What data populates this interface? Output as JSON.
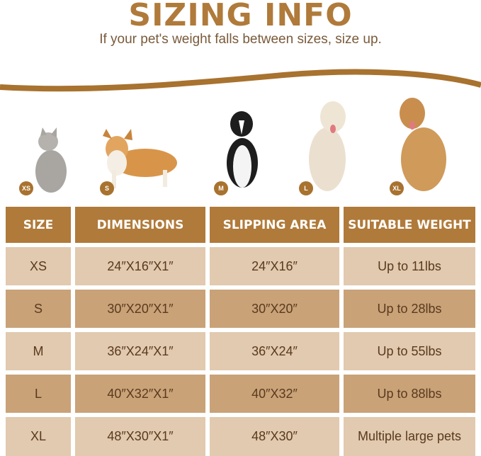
{
  "title": "SIZING INFO",
  "subtitle": "If your pet's weight falls between sizes, size up.",
  "colors": {
    "accent": "#b07a3a",
    "row_light": "#e1caaf",
    "row_dark": "#c9a278",
    "text": "#5a3a1e"
  },
  "pets": [
    {
      "badge": "XS",
      "animal": "cat"
    },
    {
      "badge": "S",
      "animal": "corgi"
    },
    {
      "badge": "M",
      "animal": "border-collie"
    },
    {
      "badge": "L",
      "animal": "golden-retriever-light"
    },
    {
      "badge": "XL",
      "animal": "golden-retriever"
    }
  ],
  "table": {
    "headers": [
      "SIZE",
      "DIMENSIONS",
      "SLIPPING AREA",
      "SUITABLE WEIGHT"
    ],
    "rows": [
      [
        "XS",
        "24″X16″X1″",
        "24″X16″",
        "Up to 11lbs"
      ],
      [
        "S",
        "30″X20″X1″",
        "30″X20″",
        "Up to 28lbs"
      ],
      [
        "M",
        "36″X24″X1″",
        "36″X24″",
        "Up to 55lbs"
      ],
      [
        "L",
        "40″X32″X1″",
        "40″X32″",
        "Up to 88lbs"
      ],
      [
        "XL",
        "48″X30″X1″",
        "48″X30″",
        "Multiple large pets"
      ]
    ]
  }
}
